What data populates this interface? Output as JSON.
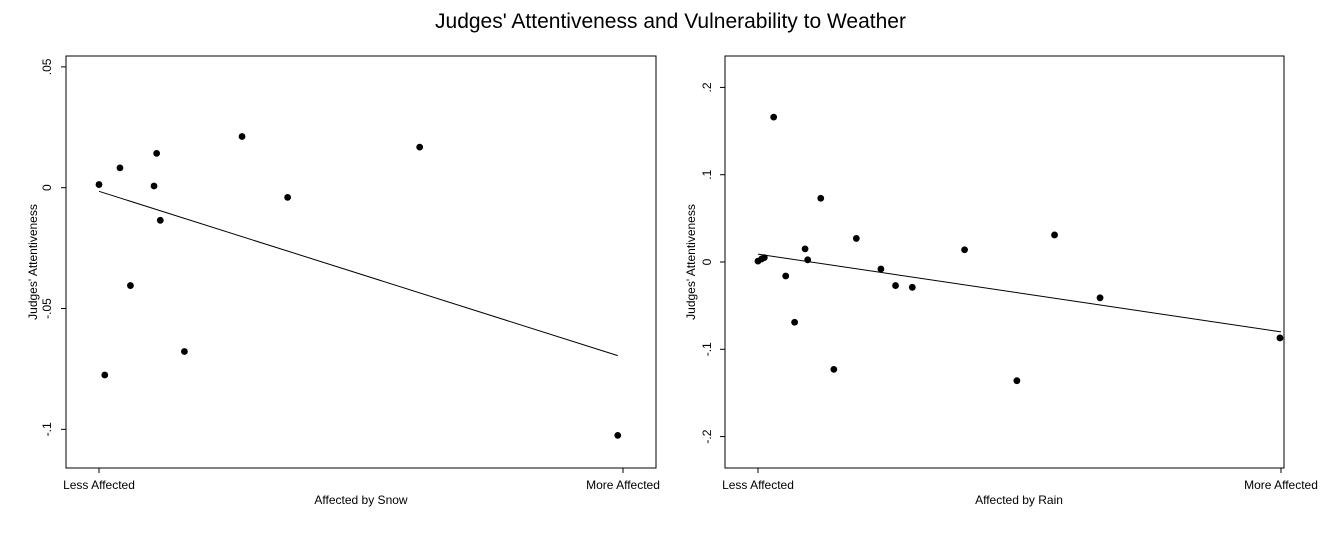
{
  "title": "Judges' Attentiveness and Vulnerability to Weather",
  "chart_data": [
    {
      "type": "scatter",
      "xlabel": "Affected by Snow",
      "ylabel": "Judges' Attentiveness",
      "x_tick_labels": [
        "Less Affected",
        "More Affected"
      ],
      "xlim": [
        0,
        1
      ],
      "ylim": [
        -0.116,
        0.0545
      ],
      "y_ticks": [
        -0.1,
        -0.05,
        0,
        0.05
      ],
      "y_tick_labels": [
        "-.1",
        "-.05",
        "0",
        ".05"
      ],
      "grid": false,
      "legend": "none",
      "points": [
        {
          "x": 0.0,
          "y": 0.0013
        },
        {
          "x": 0.011,
          "y": -0.0775
        },
        {
          "x": 0.04,
          "y": 0.0082
        },
        {
          "x": 0.06,
          "y": -0.0405
        },
        {
          "x": 0.105,
          "y": 0.0007
        },
        {
          "x": 0.11,
          "y": 0.0142
        },
        {
          "x": 0.117,
          "y": -0.0135
        },
        {
          "x": 0.163,
          "y": -0.0678
        },
        {
          "x": 0.273,
          "y": 0.0212
        },
        {
          "x": 0.36,
          "y": -0.004
        },
        {
          "x": 0.612,
          "y": 0.0168
        },
        {
          "x": 0.99,
          "y": -0.1025
        }
      ],
      "fit_line": {
        "x": [
          0,
          0.99
        ],
        "y": [
          -0.0015,
          -0.0695
        ]
      }
    },
    {
      "type": "scatter",
      "xlabel": "Affected by Rain",
      "ylabel": "Judges' Attentiveness",
      "x_tick_labels": [
        "Less Affected",
        "More Affected"
      ],
      "xlim": [
        0,
        1
      ],
      "ylim": [
        -0.236,
        0.236
      ],
      "y_ticks": [
        -0.2,
        -0.1,
        0,
        0.1,
        0.2
      ],
      "y_tick_labels": [
        "-.2",
        "-.1",
        "0",
        ".1",
        ".2"
      ],
      "grid": false,
      "legend": "none",
      "points": [
        {
          "x": 0.0,
          "y": 0.001
        },
        {
          "x": 0.007,
          "y": 0.0035
        },
        {
          "x": 0.012,
          "y": 0.005
        },
        {
          "x": 0.03,
          "y": 0.166
        },
        {
          "x": 0.053,
          "y": -0.016
        },
        {
          "x": 0.07,
          "y": -0.069
        },
        {
          "x": 0.09,
          "y": 0.015
        },
        {
          "x": 0.095,
          "y": 0.0025
        },
        {
          "x": 0.12,
          "y": 0.073
        },
        {
          "x": 0.145,
          "y": -0.123
        },
        {
          "x": 0.188,
          "y": 0.027
        },
        {
          "x": 0.235,
          "y": -0.008
        },
        {
          "x": 0.263,
          "y": -0.027
        },
        {
          "x": 0.295,
          "y": -0.029
        },
        {
          "x": 0.395,
          "y": 0.014
        },
        {
          "x": 0.495,
          "y": -0.136
        },
        {
          "x": 0.567,
          "y": 0.031
        },
        {
          "x": 0.654,
          "y": -0.041
        },
        {
          "x": 0.998,
          "y": -0.087
        }
      ],
      "fit_line": {
        "x": [
          0,
          1.0
        ],
        "y": [
          0.009,
          -0.08
        ]
      }
    }
  ]
}
